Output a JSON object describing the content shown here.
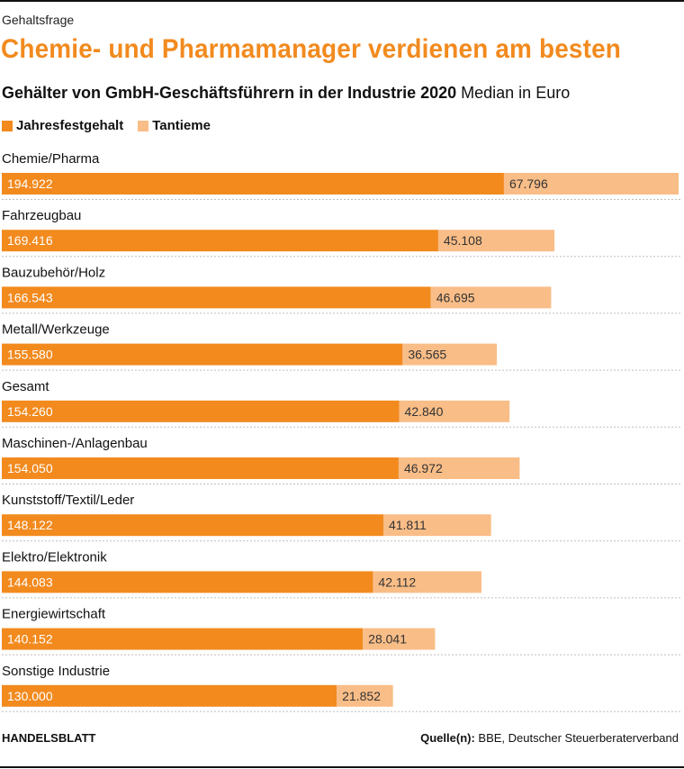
{
  "kicker": "Gehaltsfrage",
  "title": "Chemie- und Pharmamanager verdienen am besten",
  "subtitle_bold": "Gehälter von GmbH-Geschäftsführern in der Industrie 2020",
  "subtitle_rest": "Median in Euro",
  "footer": {
    "brand": "HANDELSBLATT",
    "source_label": "Quelle(n):",
    "source_text": "BBE, Deutscher Steuerberaterverband"
  },
  "colors": {
    "fixed": "#f28a1e",
    "bonus": "#f9bd87",
    "accent": "#f28a1e"
  },
  "chart_data": {
    "type": "bar",
    "orientation": "horizontal",
    "stacked": true,
    "categories": [
      "Chemie/Pharma",
      "Fahrzeugbau",
      "Bauzubehör/Holz",
      "Metall/Werkzeuge",
      "Gesamt",
      "Maschinen-/Anlagenbau",
      "Kunststoff/Textil/Leder",
      "Elektro/Elektronik",
      "Energiewirtschaft",
      "Sonstige Industrie"
    ],
    "series": [
      {
        "name": "Jahresfestgehalt",
        "values": [
          194922,
          169416,
          166543,
          155580,
          154260,
          154050,
          148122,
          144083,
          140152,
          130000
        ],
        "labels": [
          "194.922",
          "169.416",
          "166.543",
          "155.580",
          "154.260",
          "154.050",
          "148.122",
          "144.083",
          "140.152",
          "130.000"
        ]
      },
      {
        "name": "Tantieme",
        "values": [
          67796,
          45108,
          46695,
          36565,
          42840,
          46972,
          41811,
          42112,
          28041,
          21852
        ],
        "labels": [
          "67.796",
          "45.108",
          "46.695",
          "36.565",
          "42.840",
          "46.972",
          "41.811",
          "42.112",
          "28.041",
          "21.852"
        ]
      }
    ],
    "legend": "top-left",
    "grid": false
  }
}
